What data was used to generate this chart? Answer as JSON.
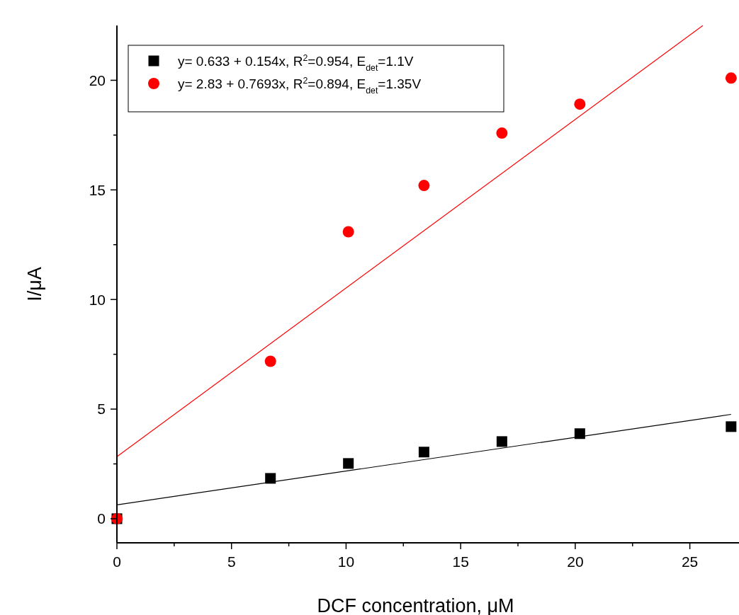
{
  "chart_data": {
    "type": "scatter",
    "xlabel": "DCF concentration, μM",
    "ylabel": "I/μA",
    "xlim": [
      0,
      27.3
    ],
    "ylim": [
      -1.1,
      22.5
    ],
    "xticks": [
      0,
      {
        "value": 2.5,
        "label": null
      },
      5,
      {
        "value": 7.5,
        "label": null
      },
      10,
      {
        "value": 12.5,
        "label": null
      },
      15,
      {
        "value": 17.5,
        "label": null
      },
      20,
      {
        "value": 22.5,
        "label": null
      },
      25
    ],
    "yticks": [
      0,
      {
        "value": 2.5,
        "label": null
      },
      5,
      {
        "value": 7.5,
        "label": null
      },
      10,
      {
        "value": 12.5,
        "label": null
      },
      15,
      {
        "value": 17.5,
        "label": null
      },
      20
    ],
    "legend": "top left",
    "grid": false,
    "series": [
      {
        "name": "y= 0.633 + 0.154x, R$^{2}$=0.954, E$_{det}$=1.1V",
        "color": "#000000",
        "marker": "square",
        "x": [
          0,
          6.7,
          10.1,
          13.4,
          16.8,
          20.2,
          26.8
        ],
        "values": [
          0,
          1.84,
          2.52,
          3.04,
          3.52,
          3.88,
          4.2
        ]
      },
      {
        "name": "y= 2.83 + 0.7693x, R$^{2}$=0.894, E$_{det}$=1.35V",
        "color": "#ff0000",
        "marker": "circle",
        "x": [
          0,
          6.7,
          10.1,
          13.4,
          16.8,
          20.2,
          26.8
        ],
        "values": [
          0,
          7.18,
          13.09,
          15.2,
          17.59,
          18.91,
          20.1
        ]
      },
      {
        "type": "line",
        "color": "#000000",
        "marker": "none",
        "x": [
          0,
          26.8
        ],
        "values": [
          0.633,
          4.76
        ]
      },
      {
        "type": "line",
        "color": "#ff0000",
        "marker": "none",
        "x": [
          0,
          25.57
        ],
        "values": [
          2.83,
          22.5
        ]
      }
    ]
  }
}
